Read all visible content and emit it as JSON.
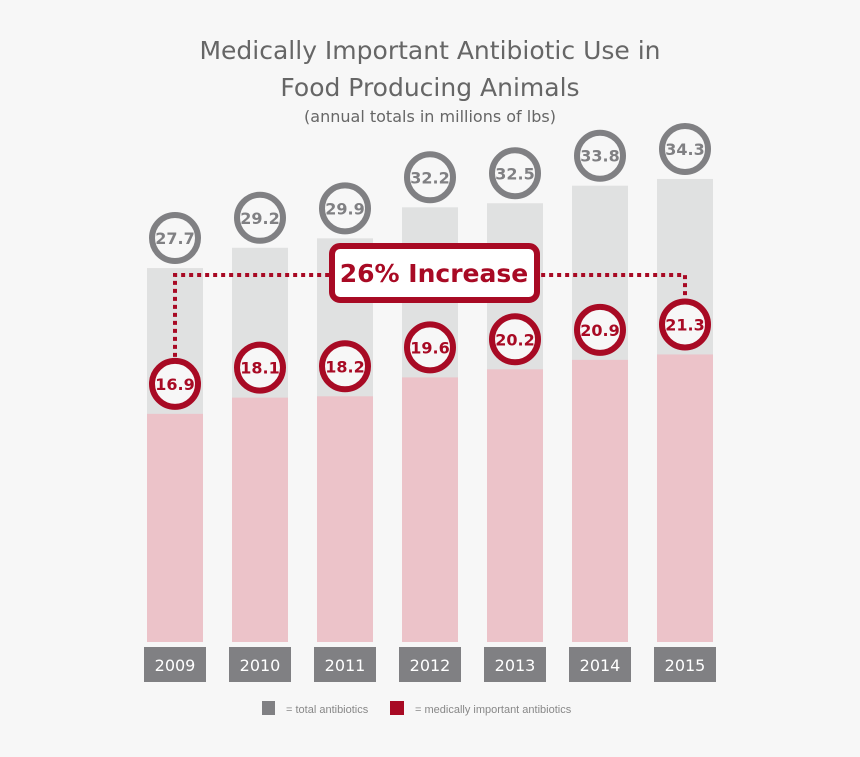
{
  "chart_data": {
    "type": "bar",
    "title": "Medically Important Antibiotic Use in Food Producing Animals",
    "title_line1": "Medically Important Antibiotic Use in",
    "title_line2": "Food Producing Animals",
    "subtitle": "(annual totals in millions of lbs)",
    "categories": [
      "2009",
      "2010",
      "2011",
      "2012",
      "2013",
      "2014",
      "2015"
    ],
    "series": [
      {
        "name": "= total antibiotics",
        "values": [
          27.7,
          29.2,
          29.9,
          32.2,
          32.5,
          33.8,
          34.3
        ],
        "color": "#808083",
        "bar_color": "#e0e1e1"
      },
      {
        "name": "= medically important antibiotics",
        "values": [
          16.9,
          18.1,
          18.2,
          19.6,
          20.2,
          20.9,
          21.3
        ],
        "color": "#a80a24",
        "bar_color": "#ecc3c9"
      }
    ],
    "annotation": "26% Increase",
    "ylim": [
      0,
      36
    ],
    "grid": false,
    "legend": "bottom"
  }
}
